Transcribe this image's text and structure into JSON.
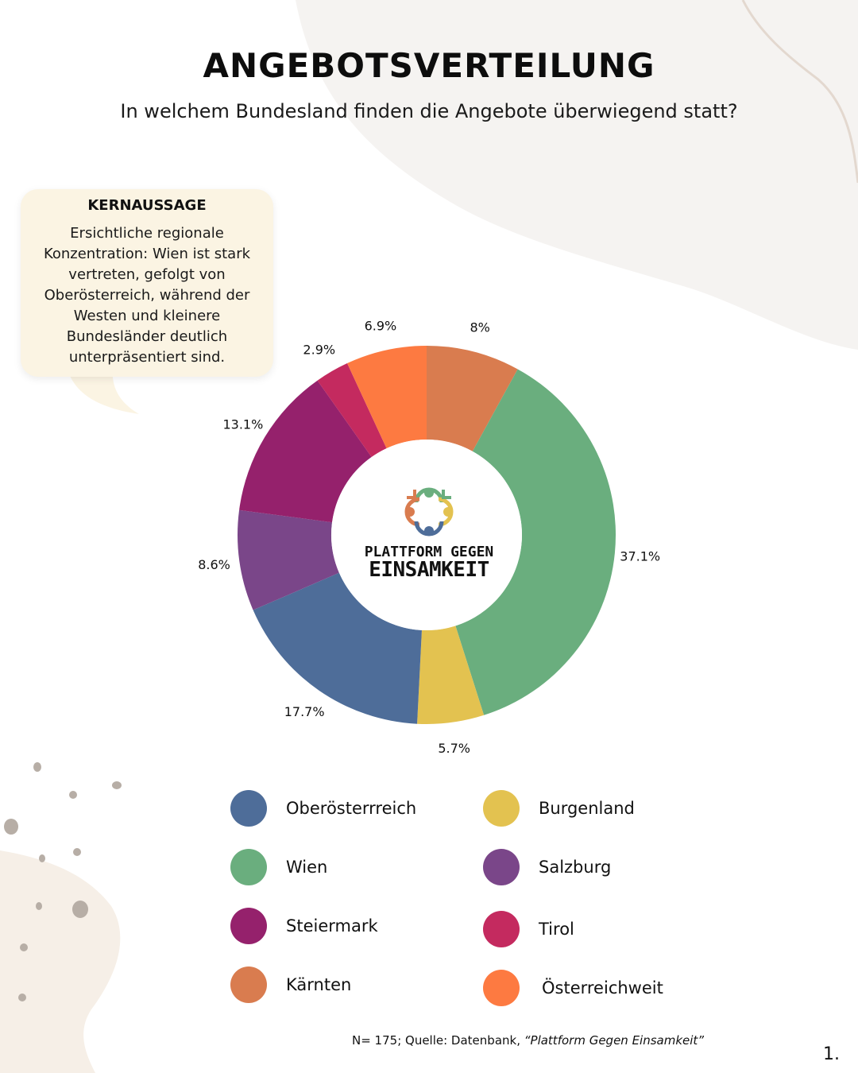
{
  "title": "ANGEBOTSVERTEILUNG",
  "subtitle": "In welchem Bundesland finden die Angebote überwiegend statt?",
  "callout": {
    "heading": "KERNAUSSAGE",
    "text": "Ersichtliche regionale Konzentration: Wien ist stark vertreten, gefolgt von Oberösterreich, während der Westen und kleinere Bundesländer deutlich unterpräsentiert sind."
  },
  "logo": {
    "line1": "PLATTFORM GEGEN",
    "line2": "EINSAMKEIT"
  },
  "chart_data": {
    "type": "pie",
    "donut": true,
    "slices": [
      {
        "name": "Kärnten",
        "value": 8,
        "label": "8%",
        "color": "#d97c4f"
      },
      {
        "name": "Wien",
        "value": 37.1,
        "label": "37.1%",
        "color": "#6aae7e"
      },
      {
        "name": "Burgenland",
        "value": 5.7,
        "label": "5.7%",
        "color": "#e3c250"
      },
      {
        "name": "Oberösterrreich",
        "value": 17.7,
        "label": "17.7%",
        "color": "#4e6d99"
      },
      {
        "name": "Salzburg",
        "value": 8.6,
        "label": "8.6%",
        "color": "#7a4689"
      },
      {
        "name": "Steiermark",
        "value": 13.1,
        "label": "13.1%",
        "color": "#95216c"
      },
      {
        "name": "Tirol",
        "value": 2.9,
        "label": "2.9%",
        "color": "#c42a5f"
      },
      {
        "name": "Österreichweit",
        "value": 6.9,
        "label": "6.9%",
        "color": "#fd7a41"
      }
    ]
  },
  "legend": [
    {
      "label": "Oberösterrreich",
      "color": "#4e6d99"
    },
    {
      "label": "Wien",
      "color": "#6aae7e"
    },
    {
      "label": "Steiermark",
      "color": "#95216c"
    },
    {
      "label": "Kärnten",
      "color": "#d97c4f"
    },
    {
      "label": "Burgenland",
      "color": "#e3c250"
    },
    {
      "label": "Salzburg",
      "color": "#7a4689"
    },
    {
      "label": "Tirol",
      "color": "#c42a5f"
    },
    {
      "label": "Österreichweit",
      "color": "#fd7a41"
    }
  ],
  "source": {
    "prefix": "N= 175; Quelle: Datenbank, ",
    "italic": "“Plattform Gegen Einsamkeit”"
  },
  "page_number": "1."
}
